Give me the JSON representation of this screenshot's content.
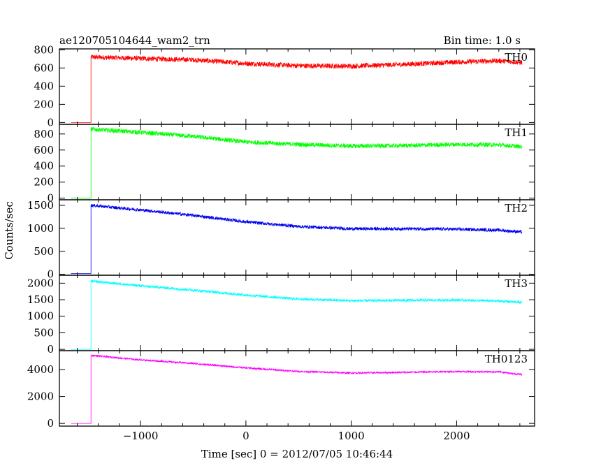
{
  "header": {
    "title": "ae120705104644_wam2_trn",
    "bin_time": "Bin time: 1.0 s"
  },
  "chart_data": {
    "type": "line",
    "x_axis": {
      "label": "Time [sec] 0 = 2012/07/05 10:46:44",
      "range": [
        -1770,
        2740
      ],
      "ticks": [
        -1000,
        0,
        1000,
        2000
      ],
      "tick_labels": [
        "−1000",
        "0",
        "1000",
        "2000"
      ]
    },
    "y_axis_label": "Counts/sec",
    "grid": false,
    "step_time": -1470,
    "panels": [
      {
        "name": "TH0",
        "color": "#ff0000",
        "ylim": [
          -20,
          810
        ],
        "yticks": [
          0,
          200,
          400,
          600,
          800
        ],
        "pre_level": 0,
        "pre_start": -1660,
        "points": [
          [
            -1470,
            720
          ],
          [
            -1000,
            705
          ],
          [
            -500,
            690
          ],
          [
            0,
            650
          ],
          [
            500,
            625
          ],
          [
            1000,
            620
          ],
          [
            1500,
            640
          ],
          [
            2000,
            665
          ],
          [
            2400,
            680
          ],
          [
            2620,
            660
          ]
        ],
        "noise": 55
      },
      {
        "name": "TH1",
        "color": "#00ff00",
        "ylim": [
          -20,
          920
        ],
        "yticks": [
          0,
          200,
          400,
          600,
          800
        ],
        "pre_level": 0,
        "pre_start": -1660,
        "points": [
          [
            -1470,
            860
          ],
          [
            -1000,
            820
          ],
          [
            -500,
            770
          ],
          [
            0,
            700
          ],
          [
            500,
            670
          ],
          [
            1000,
            650
          ],
          [
            1500,
            655
          ],
          [
            2000,
            670
          ],
          [
            2400,
            665
          ],
          [
            2620,
            640
          ]
        ],
        "noise": 55
      },
      {
        "name": "TH2",
        "color": "#0000ee",
        "ylim": [
          -20,
          1620
        ],
        "yticks": [
          0,
          500,
          1000,
          1500
        ],
        "pre_level": 20,
        "pre_start": -1660,
        "points": [
          [
            -1470,
            1500
          ],
          [
            -1000,
            1400
          ],
          [
            -500,
            1280
          ],
          [
            0,
            1140
          ],
          [
            500,
            1040
          ],
          [
            1000,
            990
          ],
          [
            1500,
            990
          ],
          [
            2000,
            980
          ],
          [
            2400,
            960
          ],
          [
            2620,
            920
          ]
        ],
        "noise": 70
      },
      {
        "name": "TH3",
        "color": "#00ffff",
        "ylim": [
          -40,
          2240
        ],
        "yticks": [
          0,
          500,
          1000,
          1500,
          2000
        ],
        "pre_level": 0,
        "pre_start": -1660,
        "points": [
          [
            -1470,
            2060
          ],
          [
            -1000,
            1920
          ],
          [
            -500,
            1790
          ],
          [
            0,
            1640
          ],
          [
            500,
            1520
          ],
          [
            1000,
            1470
          ],
          [
            1500,
            1480
          ],
          [
            2000,
            1490
          ],
          [
            2400,
            1460
          ],
          [
            2620,
            1420
          ]
        ],
        "noise": 80
      },
      {
        "name": "TH0123",
        "color": "#ff00ff",
        "ylim": [
          -200,
          5400
        ],
        "yticks": [
          0,
          2000,
          4000
        ],
        "pre_level": 0,
        "pre_start": -1660,
        "points": [
          [
            -1470,
            5050
          ],
          [
            -1000,
            4720
          ],
          [
            -500,
            4450
          ],
          [
            0,
            4120
          ],
          [
            500,
            3860
          ],
          [
            1000,
            3740
          ],
          [
            1500,
            3790
          ],
          [
            2000,
            3850
          ],
          [
            2400,
            3830
          ],
          [
            2620,
            3620
          ]
        ],
        "noise": 130
      }
    ]
  }
}
